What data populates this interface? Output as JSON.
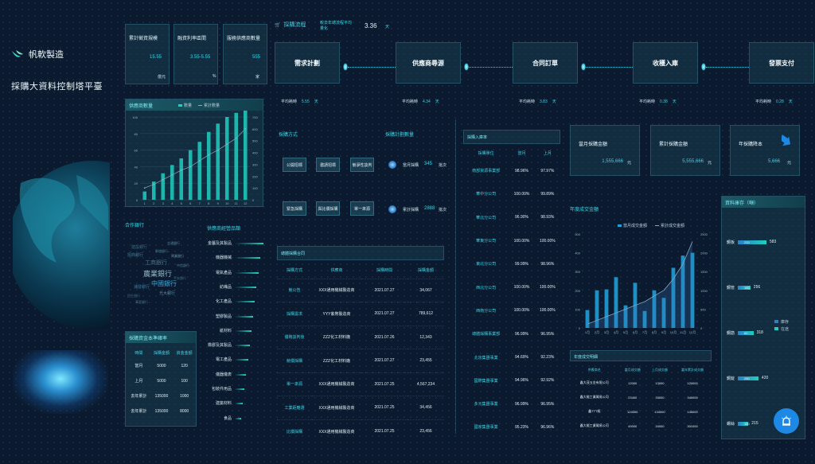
{
  "brand": {
    "name": "帆軟製造",
    "subtitle": "採購大資料控制塔平臺"
  },
  "kpis": [
    {
      "label": "累計徵資規模",
      "value": "15.55",
      "unit": "億元"
    },
    {
      "label": "融資利率區間",
      "value": "3.55-5.55",
      "unit": "%"
    },
    {
      "label": "服務供應商數量",
      "value": "555",
      "unit": "家"
    }
  ],
  "process": {
    "title": "採購流程",
    "compare_label": "較去年總流程平均量化",
    "compare_value": "3.36",
    "compare_unit": "天",
    "steps": [
      {
        "name": "需求計劃",
        "time_label": "平均耗時",
        "time": "5.55",
        "unit": "天"
      },
      {
        "name": "供應商尋源",
        "time_label": "平均耗時",
        "time": "4.34",
        "unit": "天"
      },
      {
        "name": "合同訂單",
        "time_label": "平均耗時",
        "time": "3.83",
        "unit": "天"
      },
      {
        "name": "收穫入庫",
        "time_label": "平均耗時",
        "time": "0.38",
        "unit": "天"
      },
      {
        "name": "發票支付",
        "time_label": "平均耗時",
        "time": "0.28",
        "unit": "天"
      }
    ]
  },
  "supplier_chart": {
    "title": "供應商數量",
    "legend": [
      "數量",
      "累計數量"
    ]
  },
  "chart_data": [
    {
      "type": "bar",
      "title": "供應商數量",
      "categories": [
        "1",
        "2",
        "3",
        "4",
        "5",
        "6",
        "7",
        "8",
        "9",
        "10",
        "11",
        "12"
      ],
      "series": [
        {
          "name": "數量",
          "values": [
            10,
            22,
            32,
            42,
            50,
            60,
            70,
            82,
            92,
            100,
            105,
            110
          ]
        },
        {
          "name": "累計數量",
          "values": [
            100,
            130,
            170,
            210,
            250,
            280,
            330,
            380,
            420,
            470,
            520,
            600
          ]
        }
      ],
      "y_left": {
        "ticks": [
          "0",
          "20",
          "40",
          "60",
          "80",
          "100"
        ],
        "range": [
          0,
          100
        ]
      },
      "y_right": {
        "ticks": [
          "0",
          "100",
          "200",
          "300",
          "400",
          "500",
          "600",
          "700"
        ],
        "range": [
          0,
          700
        ]
      }
    },
    {
      "type": "bar",
      "title": "年度成交金額",
      "categories": [
        "1月",
        "2月",
        "3月",
        "4月",
        "5月",
        "6月",
        "7月",
        "8月",
        "9月",
        "10月",
        "11月",
        "12月"
      ],
      "series": [
        {
          "name": "當月成交金額",
          "values": [
            95,
            200,
            205,
            270,
            120,
            240,
            90,
            200,
            160,
            320,
            385,
            400
          ]
        },
        {
          "name": "累計成交金額",
          "values": [
            100,
            200,
            300,
            400,
            500,
            600,
            700,
            850,
            1000,
            1300,
            1700,
            2300
          ]
        }
      ],
      "y_left": {
        "ticks": [
          "0",
          "100",
          "200",
          "300",
          "400",
          "500"
        ],
        "range": [
          0,
          500
        ]
      },
      "y_right": {
        "ticks": [
          "0",
          "500",
          "1000",
          "1500",
          "2000",
          "2500"
        ],
        "range": [
          0,
          2500
        ]
      }
    }
  ],
  "partners": {
    "title": "合作銀行",
    "words": [
      "農業銀行",
      "中國銀行",
      "工商銀行",
      "建設銀行",
      "交通銀行",
      "招商銀行",
      "興業銀行",
      "浦發銀行",
      "光大銀行",
      "民生銀行",
      "中信銀行",
      "華夏銀行",
      "平安銀行",
      "郵儲銀行"
    ]
  },
  "categories_panel": {
    "title": "供應商經營品類",
    "items": [
      {
        "name": "金屬及其製品",
        "value": 100
      },
      {
        "name": "機器機械",
        "value": 90
      },
      {
        "name": "電氣產品",
        "value": 82
      },
      {
        "name": "紡織品",
        "value": 76
      },
      {
        "name": "化工產品",
        "value": 70
      },
      {
        "name": "塑膠製品",
        "value": 64
      },
      {
        "name": "紙材料",
        "value": 58
      },
      {
        "name": "橡膠及其製品",
        "value": 52
      },
      {
        "name": "電工產品",
        "value": 46
      },
      {
        "name": "儀器儀表",
        "value": 40
      },
      {
        "name": "包裝件用品",
        "value": 34
      },
      {
        "name": "建築材料",
        "value": 28
      },
      {
        "name": "食品",
        "value": 22
      }
    ]
  },
  "finance": {
    "title": "採購資金本準確率",
    "headers": [
      "時間",
      "採購金額",
      "資金金額"
    ],
    "rows": [
      [
        "當月",
        "5000",
        "120"
      ],
      [
        "上月",
        "5000",
        "100"
      ],
      [
        "去年累計",
        "135000",
        "1000"
      ],
      [
        "去年累計",
        "135000",
        "8000"
      ]
    ]
  },
  "purchase_method": {
    "title": "採購方式",
    "buttons": [
      "公開招標",
      "邀請招標",
      "競爭性談判",
      "緊急採購",
      "與比價採購",
      "單一來源"
    ]
  },
  "purchase_plan": {
    "title": "採購計劃數量",
    "items": [
      {
        "label": "當月採購",
        "value": "345",
        "unit": "批次"
      },
      {
        "label": "累計採購",
        "value": "2888",
        "unit": "批次"
      }
    ]
  },
  "contracts": {
    "title": "總體採購合同",
    "headers": [
      "採購方式",
      "供應商",
      "採購時間",
      "採購金額"
    ],
    "rows": [
      [
        "競公告",
        "XXX通用機械製造商",
        "2021.07.27",
        "34,067"
      ],
      [
        "採購需求",
        "YYY紫幣製造商",
        "2021.07.27",
        "789,612"
      ],
      [
        "價格談判後",
        "ZZZ化工材料廠",
        "2021.07.26",
        "12,343"
      ],
      [
        "競價採購",
        "ZZZ化工材料廠",
        "2021.07.27",
        "23,455"
      ],
      [
        "單一來源",
        "XXX通用機械製造商",
        "2021.07.25",
        "4,567,234"
      ],
      [
        "工業距離選",
        "XXX通用機械製造商",
        "2021.07.25",
        "34,456"
      ],
      [
        "比價採購",
        "XXX通用機械製造商",
        "2021.07.25",
        "23,456"
      ]
    ]
  },
  "pay_rate": {
    "title": "採購入庫率",
    "headers": [
      "採購單位",
      "當月",
      "上月"
    ],
    "rows": [
      [
        "南部資源事業部",
        "98.96%",
        "97.97%"
      ],
      [
        "華中分公司",
        "100.00%",
        "99.89%"
      ],
      [
        "華北分公司",
        "96.90%",
        "98.93%"
      ],
      [
        "華東分公司",
        "100.00%",
        "100.00%"
      ],
      [
        "東北分公司",
        "99.99%",
        "98.96%"
      ],
      [
        "西北分公司",
        "100.00%",
        "100.00%"
      ],
      [
        "西南分公司",
        "100.00%",
        "100.00%"
      ],
      [
        "總體採購事業部",
        "96.99%",
        "96.95%"
      ],
      [
        "北京集團事業",
        "94.69%",
        "92.23%"
      ],
      [
        "國際集團事業",
        "94.96%",
        "92.92%"
      ],
      [
        "多元集團事業",
        "96.99%",
        "96.95%"
      ],
      [
        "國家集團事業",
        "95.23%",
        "96.96%"
      ]
    ]
  },
  "amounts": [
    {
      "label": "當月採購金額",
      "value": "1,555,666",
      "unit": "元"
    },
    {
      "label": "累計採購金額",
      "value": "5,555,666",
      "unit": "元"
    },
    {
      "label": "年採購降本",
      "value": "5,666",
      "unit": "元"
    }
  ],
  "yearly_chart": {
    "title": "年度成交金額",
    "legend": [
      "當月成交金額",
      "累計成交金額"
    ]
  },
  "deal_table": {
    "title": "年度成交明細",
    "headers": [
      "供應商名",
      "當月成交額",
      "上月成交額",
      "當年累計成交額"
    ],
    "rows": [
      [
        "鑫大茂五金有限公司",
        "12000",
        "13000",
        "120000"
      ],
      [
        "鑫大能工業貿易公司",
        "23400",
        "33000",
        "340000"
      ],
      [
        "鑫TTT紙",
        "124000",
        "134000",
        "145000"
      ],
      [
        "鑫大能工業貿易公司",
        "49000",
        "34000",
        "301000"
      ]
    ]
  },
  "inventory": {
    "title": "資料庫存（噸）",
    "items": [
      {
        "name": "鋼板",
        "stock": 583,
        "label_inner": "233",
        "value_label": "583"
      },
      {
        "name": "鋼管",
        "stock": 256,
        "label_inner": "150",
        "value_label": "256"
      },
      {
        "name": "鋼筋",
        "stock": 318,
        "label_inner": "60",
        "value_label": "318"
      },
      {
        "name": "鋼錠",
        "stock": 420,
        "label_inner": "280",
        "value_label": "420"
      },
      {
        "name": "螺絲",
        "stock": 215,
        "label_inner": "150",
        "value_label": "215"
      }
    ],
    "legend": [
      "庫存",
      "在途"
    ]
  },
  "colors": {
    "accent": "#38d6e6",
    "bar": "#1f9fd6",
    "bg": "#0b1a2e"
  }
}
